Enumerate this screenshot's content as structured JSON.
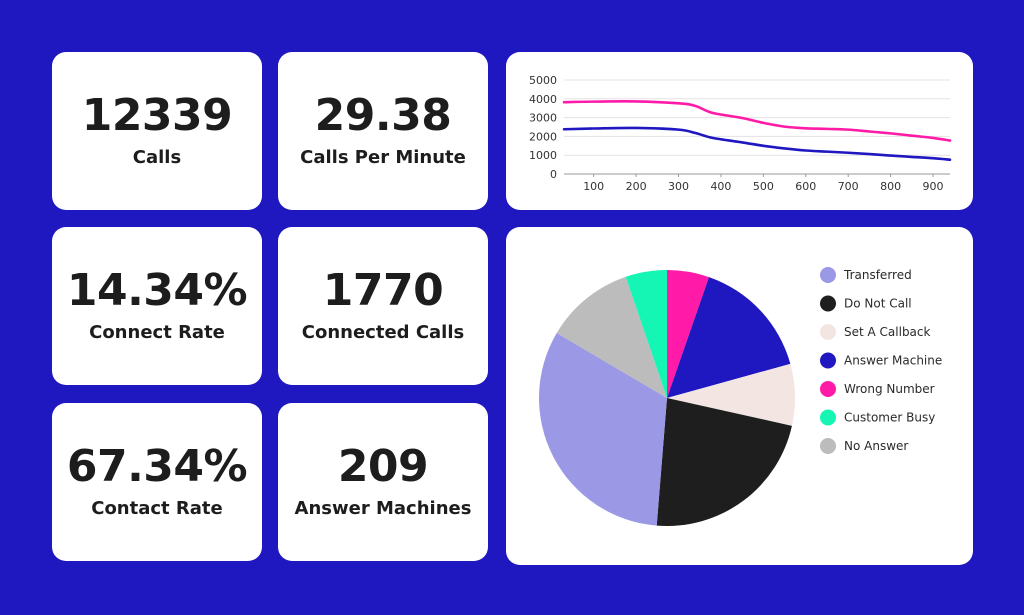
{
  "stats": [
    {
      "value": "12339",
      "label": "Calls"
    },
    {
      "value": "29.38",
      "label": "Calls Per Minute"
    },
    {
      "value": "14.34%",
      "label": "Connect Rate"
    },
    {
      "value": "1770",
      "label": "Connected Calls"
    },
    {
      "value": "67.34%",
      "label": "Contact Rate"
    },
    {
      "value": "209",
      "label": "Answer Machines"
    }
  ],
  "colors": {
    "background": "#1f17c0",
    "card": "#ffffff",
    "text": "#1d1d1d"
  },
  "chart_data": [
    {
      "type": "line",
      "ylim": [
        0,
        5000
      ],
      "xlim": [
        30,
        940
      ],
      "yticks": [
        0,
        1000,
        2000,
        3000,
        4000,
        5000
      ],
      "xticks": [
        100,
        200,
        300,
        400,
        500,
        600,
        700,
        800,
        900
      ],
      "grid": true,
      "series": [
        {
          "color": "#ff1aa8",
          "x": [
            30,
            100,
            200,
            300,
            340,
            380,
            450,
            500,
            550,
            600,
            650,
            700,
            750,
            800,
            850,
            900,
            940
          ],
          "y": [
            3820,
            3850,
            3860,
            3760,
            3620,
            3250,
            2980,
            2720,
            2520,
            2430,
            2400,
            2360,
            2260,
            2160,
            2040,
            1920,
            1780
          ]
        },
        {
          "color": "#1f17c0",
          "x": [
            30,
            100,
            200,
            300,
            340,
            380,
            450,
            500,
            550,
            600,
            650,
            700,
            750,
            800,
            850,
            900,
            940
          ],
          "y": [
            2380,
            2420,
            2450,
            2360,
            2180,
            1920,
            1680,
            1500,
            1360,
            1250,
            1190,
            1130,
            1060,
            980,
            910,
            840,
            760
          ]
        }
      ]
    },
    {
      "type": "pie",
      "slices": [
        {
          "label": "Transferred",
          "value": 33.9,
          "color": "#9b98e6"
        },
        {
          "label": "Do Not Call",
          "value": 24.0,
          "color": "#1e1e1e"
        },
        {
          "label": "Set A Callback",
          "value": 8.2,
          "color": "#f3e6e2"
        },
        {
          "label": "Answer Machine",
          "value": 16.2,
          "color": "#1f17c0"
        },
        {
          "label": "Wrong Number",
          "value": 5.6,
          "color": "#ff1aa8"
        },
        {
          "label": "Customer Busy",
          "value": 5.5,
          "color": "#15f5b3"
        },
        {
          "label": "No Answer",
          "value": 11.9,
          "color": "#bcbcbc"
        }
      ]
    }
  ]
}
